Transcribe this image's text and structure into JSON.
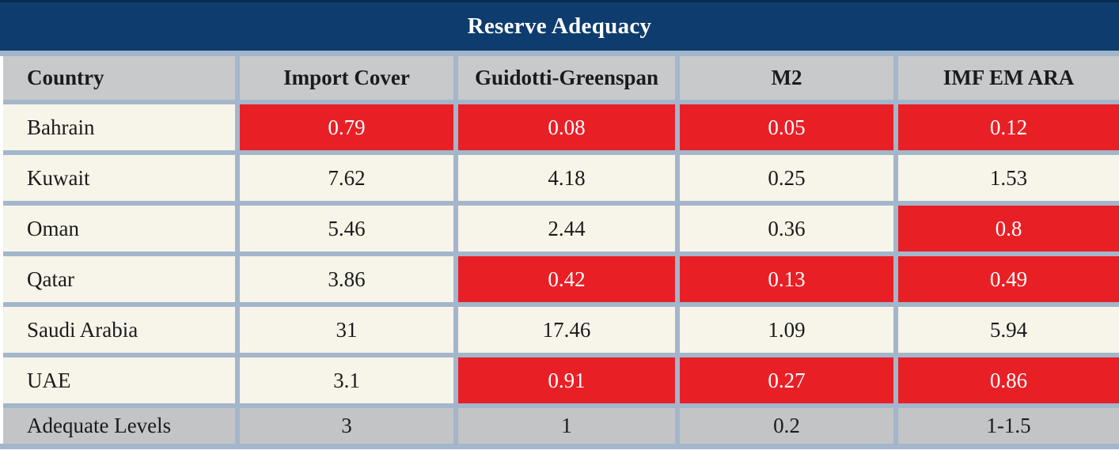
{
  "title": "Reserve Adequacy",
  "chart_data": {
    "type": "table",
    "title": "Reserve Adequacy",
    "columns": [
      "Country",
      "Import Cover",
      "Guidotti-Greenspan",
      "M2",
      "IMF EM ARA"
    ],
    "rows": [
      {
        "country": "Bahrain",
        "values": [
          "0.79",
          "0.08",
          "0.05",
          "0.12"
        ],
        "red_flags": [
          true,
          true,
          true,
          true
        ]
      },
      {
        "country": "Kuwait",
        "values": [
          "7.62",
          "4.18",
          "0.25",
          "1.53"
        ],
        "red_flags": [
          false,
          false,
          false,
          false
        ]
      },
      {
        "country": "Oman",
        "values": [
          "5.46",
          "2.44",
          "0.36",
          "0.8"
        ],
        "red_flags": [
          false,
          false,
          false,
          true
        ]
      },
      {
        "country": "Qatar",
        "values": [
          "3.86",
          "0.42",
          "0.13",
          "0.49"
        ],
        "red_flags": [
          false,
          true,
          true,
          true
        ]
      },
      {
        "country": "Saudi Arabia",
        "values": [
          "31",
          "17.46",
          "1.09",
          "5.94"
        ],
        "red_flags": [
          false,
          false,
          false,
          false
        ]
      },
      {
        "country": "UAE",
        "values": [
          "3.1",
          "0.91",
          "0.27",
          "0.86"
        ],
        "red_flags": [
          false,
          true,
          true,
          true
        ]
      }
    ],
    "footer": {
      "label": "Adequate Levels",
      "values": [
        "3",
        "1",
        "0.2",
        "1-1.5"
      ]
    }
  },
  "colors": {
    "title_bar_navy": "#0e3c6e",
    "alert_red": "#e91f26",
    "border_blue": "#a3b6cb",
    "row_cream": "#f7f4e9",
    "header_gray": "#c8c9cb",
    "footer_gray": "#c3c4c6"
  }
}
